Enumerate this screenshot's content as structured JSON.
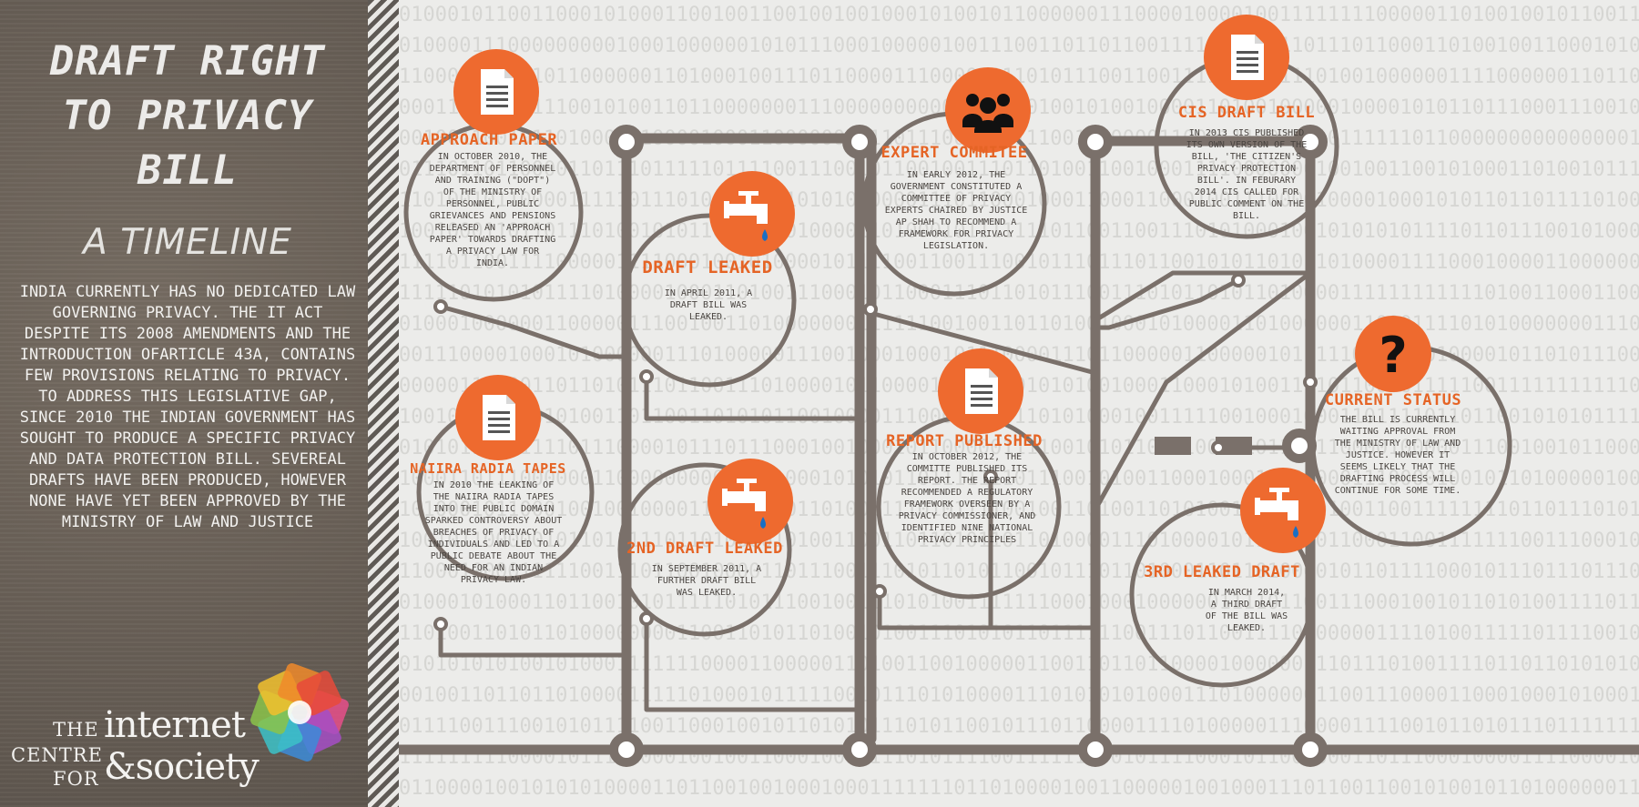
{
  "left_panel": {
    "title_lines": [
      "DRAFT RIGHT",
      "TO PRIVACY",
      "BILL"
    ],
    "subtitle": "A TIMELINE",
    "intro": "INDIA CURRENTLY HAS NO DEDICATED LAW GOVERNING PRIVACY. THE IT ACT DESPITE ITS 2008 AMENDMENTS AND THE INTRODUCTION OFARTICLE 43A, CONTAINS FEW PROVISIONS RELATING TO PRIVACY. TO ADDRESS THIS LEGISLATIVE GAP, SINCE 2010 THE INDIAN GOVERNMENT HAS SOUGHT TO PRODUCE A SPECIFIC PRIVACY AND DATA PROTECTION BILL. SEVEREAL DRAFTS HAVE BEEN PRODUCED, HOWEVER NONE HAVE YET BEEN APPROVED BY THE MINISTRY OF LAW AND JUSTICE"
  },
  "logo": {
    "the": "THE",
    "centre": "CENTRE",
    "for": "FOR",
    "internet": "internet",
    "society": "&society",
    "mark_colors": [
      "#e84f8a",
      "#a44ec6",
      "#3c8bd8",
      "#3cc2c8",
      "#8bc34a",
      "#f2c12e",
      "#f08a2a",
      "#e84a3a"
    ]
  },
  "timeline": {
    "nodes": [
      {
        "id": "approach-paper",
        "icon": "document-icon",
        "title": "APPROACH PAPER",
        "body": "IN OCTOBER 2010, THE DEPARTMENT OF PERSONNEL AND TRAINING (\"DOPT\") OF THE MINISTRY OF PERSONNEL, PUBLIC GRIEVANCES AND PENSIONS RELEASED AN 'APPROACH PAPER' TOWARDS DRAFTING A PRIVACY LAW FOR INDIA."
      },
      {
        "id": "draft-leaked",
        "icon": "leaking-tap-icon",
        "title": "DRAFT LEAKED",
        "body": "IN APRIL 2011, A DRAFT BILL WAS LEAKED."
      },
      {
        "id": "expert-committee",
        "icon": "group-icon",
        "title": "EXPERT COMMITEE",
        "body": "IN EARLY 2012, THE GOVERNMENT CONSTITUTED A COMMITTEE OF PRIVACY EXPERTS CHAIRED BY JUSTICE AP SHAH TO RECOMMEND A FRAMEWORK FOR PRIVACY LEGISLATION."
      },
      {
        "id": "cis-draft-bill",
        "icon": "document-icon",
        "title": "CIS DRAFT BILL",
        "body": "IN 2013 CIS PUBLISHED ITS OWN VERSION OF THE BILL, 'THE CITIZEN'S PRIVACY PROTECTION BILL'. IN FEBURARY 2014 CIS CALLED FOR PUBLIC COMMENT ON THE BILL."
      },
      {
        "id": "naiira-radia-tapes",
        "icon": "document-icon",
        "title": "NAIIRA RADIA TAPES",
        "body": "IN 2010 THE LEAKING OF THE NAIIRA RADIA TAPES INTO THE PUBLIC DOMAIN SPARKED CONTROVERSY ABOUT BREACHES OF PRIVACY OF INDIVIDUALS AND LED TO A PUBLIC DEBATE ABOUT THE NEED FOR AN INDIAN PRIVACY LAW."
      },
      {
        "id": "second-draft-leaked",
        "icon": "leaking-tap-icon",
        "title": "2ND DRAFT LEAKED",
        "body": "IN SEPTEMBER 2011, A FURTHER DRAFT BILL WAS LEAKED."
      },
      {
        "id": "report-published",
        "icon": "document-icon",
        "title": "REPORT PUBLISHED",
        "body": "IN OCTOBER 2012, THE COMMITTE PUBLISHED ITS REPORT. THE REPORT RECOMMENDED A REGULATORY FRAMEWORK OVERSEEN BY A PRIVACY COMMISSIONER, AND IDENTIFIED NINE NATIONAL PRIVACY PRINCIPLES"
      },
      {
        "id": "third-leaked-draft",
        "icon": "leaking-tap-icon",
        "title": "3RD LEAKED DRAFT",
        "body": "IN MARCH 2014, A THIRD DRAFT OF THE BILL WAS LEAKED."
      },
      {
        "id": "current-status",
        "icon": "question-mark-icon",
        "title": "CURRENT STATUS",
        "body": "THE BILL IS CURRENTLY WAITING APPROVAL FROM THE MINISTRY OF LAW AND JUSTICE. HOWEVER IT SEEMS LIKELY THAT THE DRAFTING PROCESS WILL CONTINUE FOR SOME TIME."
      }
    ]
  },
  "colors": {
    "accent": "#ee6a2f",
    "circuit": "#7a706a",
    "panel": "#6b6259",
    "background": "#ececea"
  }
}
